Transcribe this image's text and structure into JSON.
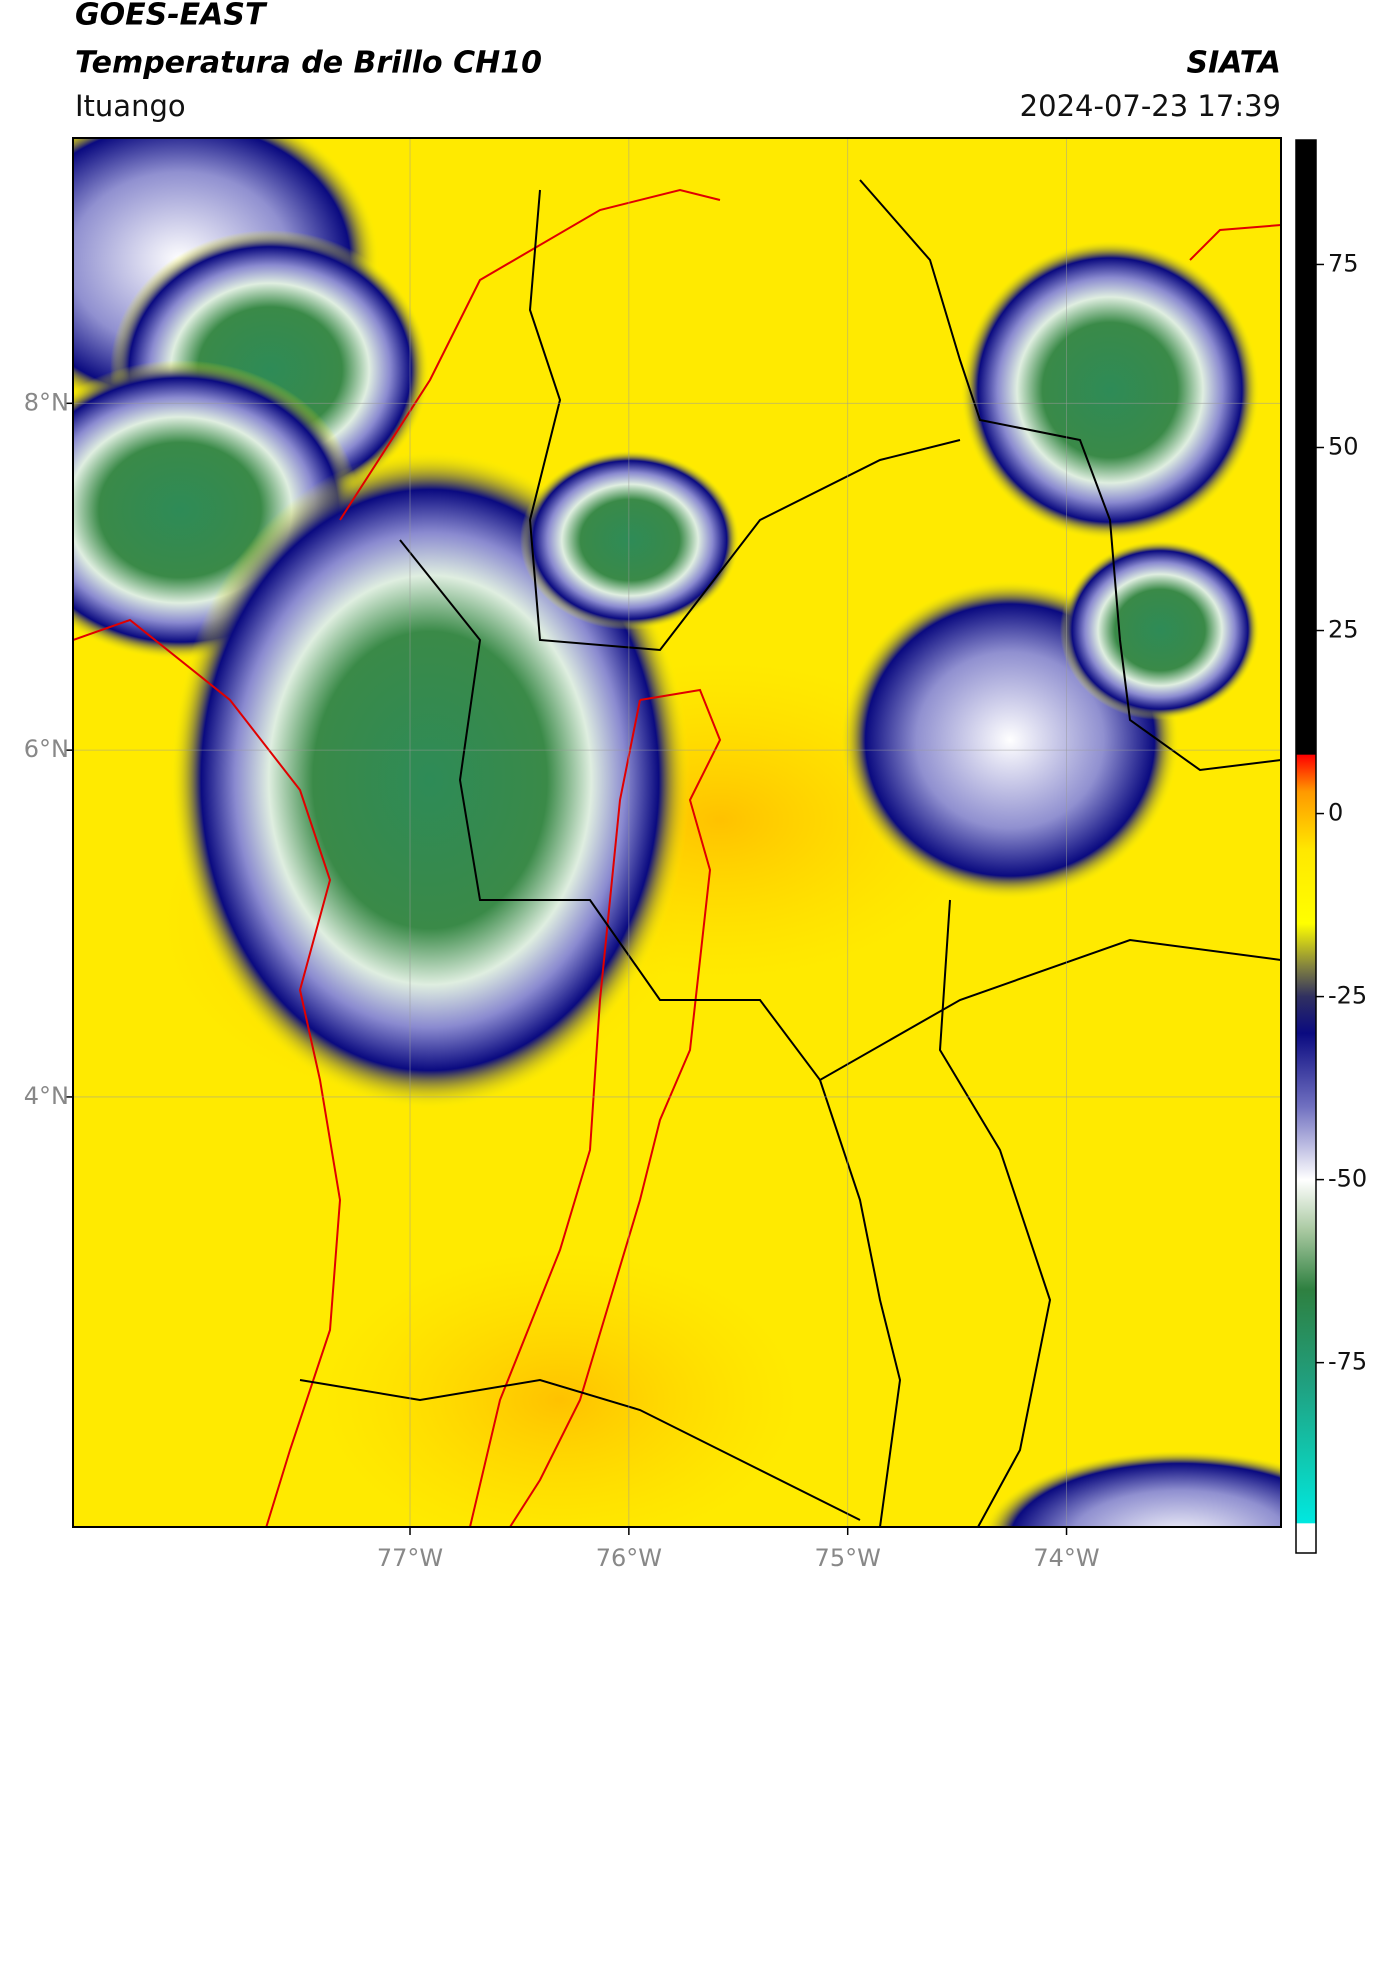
{
  "chart_data": {
    "type": "map",
    "title": "GOES-EAST",
    "subtitle": "Temperatura de Brillo CH10",
    "source": "SIATA",
    "location": "Ituango",
    "date": "2024-07-23 17:39",
    "xlim": [
      -78.54,
      -73.02
    ],
    "ylim": [
      1.52,
      9.53
    ],
    "xticks": [
      {
        "value": -77,
        "label": "77°W"
      },
      {
        "value": -76,
        "label": "76°W"
      },
      {
        "value": -75,
        "label": "75°W"
      },
      {
        "value": -74,
        "label": "74°W"
      }
    ],
    "yticks": [
      {
        "value": 8,
        "label": "8°N"
      },
      {
        "value": 6,
        "label": "6°N"
      },
      {
        "value": 4,
        "label": "4°N"
      }
    ],
    "grid": true,
    "clim": [
      -101,
      92
    ],
    "cticks": [
      75,
      50,
      25,
      0,
      -25,
      -50,
      -75
    ],
    "colormap": [
      {
        "value": -101,
        "color": "#ffffff"
      },
      {
        "value": -97,
        "color": "#ffffff"
      },
      {
        "value": -96.9,
        "color": "#00e8e0"
      },
      {
        "value": -88,
        "color": "#10c8b0"
      },
      {
        "value": -78,
        "color": "#20a080"
      },
      {
        "value": -65,
        "color": "#2e8040"
      },
      {
        "value": -57,
        "color": "#a8c8a0"
      },
      {
        "value": -50,
        "color": "#ffffff"
      },
      {
        "value": -40,
        "color": "#7070c0"
      },
      {
        "value": -30,
        "color": "#0a0a80"
      },
      {
        "value": -25,
        "color": "#303060"
      },
      {
        "value": -21,
        "color": "#808040"
      },
      {
        "value": -15,
        "color": "#ffff00"
      },
      {
        "value": -5,
        "color": "#ffe800"
      },
      {
        "value": 3,
        "color": "#ff9900"
      },
      {
        "value": 8,
        "color": "#ff0000"
      },
      {
        "value": 8.1,
        "color": "#000000"
      },
      {
        "value": 92,
        "color": "#000000"
      }
    ]
  }
}
